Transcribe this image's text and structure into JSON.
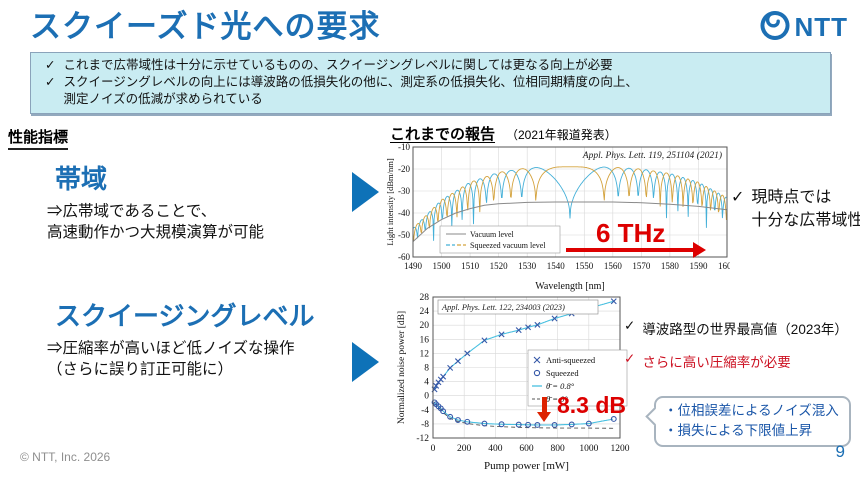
{
  "slide": {
    "title": "スクイーズド光への要求",
    "logo_text": "NTT",
    "page_number": "9",
    "copyright": "© NTT, Inc.  2026"
  },
  "summary_box": {
    "items": [
      {
        "check": "✓",
        "lines": [
          "これまで広帯域性は十分に示せているものの、スクイージングレベルに関しては更なる向上が必要"
        ]
      },
      {
        "check": "✓",
        "lines": [
          "スクイージングレベルの向上には導波路の低損失化の他に、測定系の低損失化、位相同期精度の向上、",
          "測定ノイズの低減が求められている"
        ]
      }
    ]
  },
  "left_panel": {
    "heading": "性能指標",
    "bandwidth": {
      "title": "帯域",
      "desc_lines": [
        "⇒広帯域であることで、",
        "高速動作かつ大規模演算が可能"
      ]
    },
    "squeezing": {
      "title": "スクイージングレベル",
      "desc_lines": [
        "⇒圧縮率が高いほど低ノイズな操作",
        "（さらに誤り訂正可能に）"
      ]
    }
  },
  "reports": {
    "heading": "これまでの報告",
    "note": "（2021年報道発表）"
  },
  "annotations": {
    "bandwidth_note": {
      "check": "✓",
      "lines": [
        "現時点では",
        "十分な広帯域性"
      ]
    },
    "record_note": {
      "check": "✓",
      "text": "導波路型の世界最高値（2023年）"
    },
    "need_note": {
      "check": "✓",
      "text": "さらに高い圧縮率が必要"
    },
    "callout_lines": [
      "・位相誤差によるノイズ混入",
      "・損失による下限値上昇"
    ]
  },
  "colors": {
    "accent_blue": "#1c6fb4",
    "arrow_blue": "#0e72b8",
    "summary_bg": "#c9ecf2",
    "red": "#dd0000",
    "callout_text": "#1a56a8",
    "curve_cyan": "#45b0d8",
    "curve_orange": "#d4a33e",
    "curve_gray": "#8a8a8a",
    "marker_blue": "#3558a8",
    "fit_cyan": "#49c0e0"
  },
  "chart_data": [
    {
      "type": "line",
      "title": "Appl. Phys. Lett. 119, 251104 (2021)",
      "xlabel": "Wavelength [nm]",
      "ylabel": "Light intensity [dBm/nm]",
      "xlim": [
        1490,
        1600
      ],
      "xticks": [
        1490,
        1500,
        1510,
        1520,
        1530,
        1540,
        1550,
        1560,
        1570,
        1580,
        1590,
        1600
      ],
      "ylim": [
        -60,
        -10
      ],
      "yticks": [
        -10,
        -20,
        -30,
        -40,
        -50,
        -60
      ],
      "grid": true,
      "legend": [
        "Vacuum level",
        "Squeezed vacuum level"
      ],
      "annotation": {
        "text": "6 THz",
        "color": "#dd0000",
        "arrow": "right",
        "span_nm": [
          1518,
          1595
        ]
      },
      "series": [
        {
          "name": "Vacuum level",
          "style": "solid",
          "color": "#8a8a8a",
          "points": [
            [
              1490,
              -53
            ],
            [
              1495,
              -47
            ],
            [
              1500,
              -43
            ],
            [
              1505,
              -40
            ],
            [
              1510,
              -38
            ],
            [
              1515,
              -36.5
            ],
            [
              1520,
              -35.8
            ],
            [
              1530,
              -35.2
            ],
            [
              1540,
              -35
            ],
            [
              1550,
              -35
            ],
            [
              1560,
              -35
            ],
            [
              1570,
              -35.3
            ],
            [
              1580,
              -36
            ],
            [
              1590,
              -37
            ],
            [
              1600,
              -38.5
            ]
          ]
        },
        {
          "name": "Squeezed vacuum level (fringe A)",
          "style": "fringe",
          "color": "#45b0d8",
          "fringe": {
            "center": 1545,
            "k": 0.011,
            "mode": "sin",
            "power": 0.22
          },
          "top_envelope": [
            [
              1490,
              -47
            ],
            [
              1500,
              -34
            ],
            [
              1510,
              -26
            ],
            [
              1520,
              -21.5
            ],
            [
              1530,
              -19.5
            ],
            [
              1540,
              -19
            ],
            [
              1550,
              -19
            ],
            [
              1560,
              -19.2
            ],
            [
              1570,
              -20
            ],
            [
              1580,
              -22
            ],
            [
              1590,
              -26
            ],
            [
              1600,
              -33
            ]
          ],
          "bottom_envelope": [
            [
              1490,
              -59
            ],
            [
              1500,
              -55
            ],
            [
              1510,
              -50
            ],
            [
              1520,
              -46
            ],
            [
              1530,
              -44
            ],
            [
              1545,
              -42.5
            ],
            [
              1560,
              -44
            ],
            [
              1575,
              -46
            ],
            [
              1590,
              -50
            ],
            [
              1600,
              -54
            ]
          ]
        },
        {
          "name": "Squeezed vacuum level (fringe B)",
          "style": "fringe",
          "color": "#d4a33e",
          "fringe": {
            "center": 1545,
            "k": 0.011,
            "mode": "cos",
            "power": 0.22
          },
          "top_envelope": [
            [
              1490,
              -47
            ],
            [
              1500,
              -34
            ],
            [
              1510,
              -26
            ],
            [
              1520,
              -21.5
            ],
            [
              1530,
              -19.5
            ],
            [
              1540,
              -19
            ],
            [
              1550,
              -19
            ],
            [
              1560,
              -19.2
            ],
            [
              1570,
              -20
            ],
            [
              1580,
              -22
            ],
            [
              1590,
              -26
            ],
            [
              1600,
              -33
            ]
          ],
          "bottom_envelope": [
            [
              1490,
              -59
            ],
            [
              1500,
              -55
            ],
            [
              1510,
              -50
            ],
            [
              1520,
              -46
            ],
            [
              1530,
              -44
            ],
            [
              1545,
              -42.5
            ],
            [
              1560,
              -44
            ],
            [
              1575,
              -46
            ],
            [
              1590,
              -50
            ],
            [
              1600,
              -54
            ]
          ]
        }
      ]
    },
    {
      "type": "scatter",
      "title": "Appl. Phys. Lett. 122, 234003 (2023)",
      "xlabel": "Pump power [mW]",
      "ylabel": "Normalized noise power [dB]",
      "xlim": [
        0,
        1200
      ],
      "xticks": [
        0,
        200,
        400,
        600,
        800,
        1000,
        1200
      ],
      "ylim": [
        -12,
        28
      ],
      "yticks": [
        -12,
        -8,
        -4,
        0,
        4,
        8,
        12,
        16,
        20,
        24,
        28
      ],
      "grid": true,
      "legend": [
        {
          "marker": "x",
          "label": "Anti-squeezed"
        },
        {
          "marker": "o",
          "label": "Squeezed"
        },
        {
          "line": "solid",
          "label": "θ̄ = 0.8°"
        },
        {
          "line": "dashed",
          "label": "θ̄ = 0°"
        }
      ],
      "annotation": {
        "text": "8.3 dB",
        "color": "#dd0000",
        "arrow": "down",
        "at_mW": 720
      },
      "series": [
        {
          "name": "θ̄ = 0°",
          "style": "dashed",
          "color": "#555555",
          "points": [
            [
              10,
              -2.0
            ],
            [
              65,
              -4.8
            ],
            [
              110,
              -6.4
            ],
            [
              160,
              -7.3
            ],
            [
              220,
              -7.9
            ],
            [
              330,
              -8.5
            ],
            [
              440,
              -8.8
            ],
            [
              550,
              -9.0
            ],
            [
              670,
              -9.1
            ],
            [
              780,
              -9.15
            ],
            [
              890,
              -9.2
            ],
            [
              1000,
              -9.2
            ],
            [
              1160,
              -9.25
            ]
          ]
        },
        {
          "name": "Anti-squeezed",
          "style": "markers-line",
          "marker": "x",
          "marker_color": "#3558a8",
          "line_color": "#49c0e0",
          "points": [
            [
              10,
              1.8
            ],
            [
              20,
              2.8
            ],
            [
              35,
              3.8
            ],
            [
              50,
              4.6
            ],
            [
              65,
              5.4
            ],
            [
              110,
              7.9
            ],
            [
              160,
              9.8
            ],
            [
              220,
              12.0
            ],
            [
              330,
              15.7
            ],
            [
              440,
              17.4
            ],
            [
              550,
              18.6
            ],
            [
              610,
              19.4
            ],
            [
              670,
              20.1
            ],
            [
              780,
              21.9
            ],
            [
              890,
              23.3
            ],
            [
              1000,
              24.8
            ],
            [
              1160,
              26.8
            ]
          ]
        },
        {
          "name": "Squeezed",
          "style": "markers-line",
          "marker": "o",
          "marker_color": "#3558a8",
          "line_color": "#49c0e0",
          "points": [
            [
              10,
              -1.9
            ],
            [
              20,
              -2.4
            ],
            [
              35,
              -3.0
            ],
            [
              50,
              -3.6
            ],
            [
              65,
              -4.4
            ],
            [
              110,
              -6.0
            ],
            [
              160,
              -6.9
            ],
            [
              220,
              -7.4
            ],
            [
              330,
              -7.9
            ],
            [
              440,
              -8.1
            ],
            [
              550,
              -8.2
            ],
            [
              610,
              -8.25
            ],
            [
              670,
              -8.3
            ],
            [
              780,
              -8.3
            ],
            [
              890,
              -8.15
            ],
            [
              1000,
              -7.9
            ],
            [
              1160,
              -6.6
            ]
          ]
        }
      ]
    }
  ]
}
